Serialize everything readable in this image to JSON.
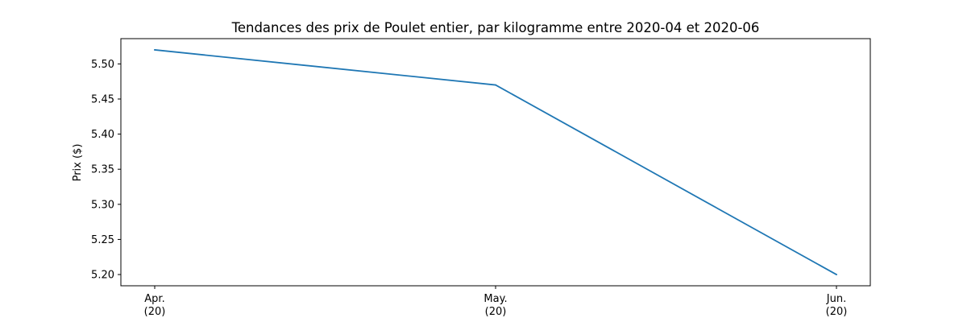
{
  "chart_data": {
    "type": "line",
    "title": "Tendances des prix de Poulet entier, par kilogramme entre 2020-04 et 2020-06",
    "xlabel": "",
    "ylabel": "Prix ($)",
    "categories": [
      {
        "label_line1": "Apr.",
        "label_line2": "(20)"
      },
      {
        "label_line1": "May.",
        "label_line2": "(20)"
      },
      {
        "label_line1": "Jun.",
        "label_line2": "(20)"
      }
    ],
    "series": [
      {
        "values": [
          5.52,
          5.47,
          5.2
        ],
        "color": "#1f77b4"
      }
    ],
    "ylim": [
      5.184,
      5.536
    ],
    "yticks": [
      "5.20",
      "5.25",
      "5.30",
      "5.35",
      "5.40",
      "5.45",
      "5.50"
    ],
    "grid": false,
    "legend": "none"
  }
}
